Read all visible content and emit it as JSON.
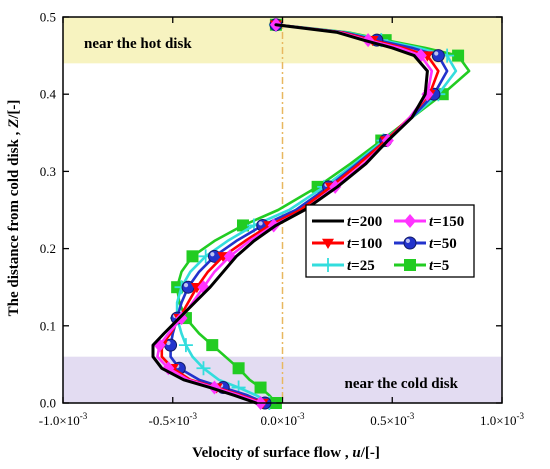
{
  "chart_data": {
    "type": "line",
    "xlabel": {
      "text": "Velocity of surface flow , ",
      "var": "u",
      "unit": "/[-]"
    },
    "ylabel": {
      "text": "The distance from cold disk , ",
      "var": "Z",
      "unit": "/[-]"
    },
    "xlim": [
      -0.001,
      0.001
    ],
    "ylim": [
      0.0,
      0.5
    ],
    "xticks": [
      {
        "value": -0.001,
        "mant": "-1.0",
        "exp": "-3"
      },
      {
        "value": -0.0005,
        "mant": "-0.5",
        "exp": "-3"
      },
      {
        "value": 0.0,
        "mant": "0.0",
        "exp": "-3"
      },
      {
        "value": 0.0005,
        "mant": "0.5",
        "exp": "-3"
      },
      {
        "value": 0.001,
        "mant": "1.0",
        "exp": "-3"
      }
    ],
    "yticks": [
      {
        "value": 0.0,
        "label": "0.0"
      },
      {
        "value": 0.1,
        "label": "0.1"
      },
      {
        "value": 0.2,
        "label": "0.2"
      },
      {
        "value": 0.3,
        "label": "0.3"
      },
      {
        "value": 0.4,
        "label": "0.4"
      },
      {
        "value": 0.5,
        "label": "0.5"
      }
    ],
    "bands": [
      {
        "label": "near the hot disk",
        "y0": 0.44,
        "y1": 0.5,
        "color": "#f7f3c0"
      },
      {
        "label": "near the cold disk",
        "y0": 0.0,
        "y1": 0.06,
        "color": "#e3dcf2"
      }
    ],
    "reference_line": {
      "x": 0.0,
      "color": "#e8b860"
    },
    "legend_placement": "right",
    "series": [
      {
        "name": "t=200",
        "legend_var": "t",
        "legend_val": "=200",
        "color": "#000000",
        "marker": "none",
        "x": [
          -0.00012,
          -0.00022,
          -0.00033,
          -0.00045,
          -0.00055,
          -0.00059,
          -0.00059,
          -0.00054,
          -0.00047,
          -0.0004,
          -0.00033,
          -0.00027,
          -0.00021,
          -0.00013,
          -3e-05,
          0.0001,
          0.00025,
          0.00038,
          0.00048,
          0.00059,
          0.00065,
          0.00066,
          0.0006,
          0.0005,
          0.00037,
          0.00025,
          -3e-05
        ],
        "y": [
          0.0,
          0.01,
          0.02,
          0.03,
          0.045,
          0.06,
          0.075,
          0.09,
          0.11,
          0.13,
          0.15,
          0.17,
          0.19,
          0.21,
          0.23,
          0.25,
          0.28,
          0.31,
          0.34,
          0.37,
          0.4,
          0.43,
          0.45,
          0.46,
          0.47,
          0.48,
          0.49
        ]
      },
      {
        "name": "t=150",
        "legend_var": "t",
        "legend_val": "=150",
        "color": "#ff33ff",
        "marker": "diamond",
        "x": [
          -0.0001,
          -0.0002,
          -0.00031,
          -0.00043,
          -0.00052,
          -0.00057,
          -0.00056,
          -0.00052,
          -0.00046,
          -0.00041,
          -0.00036,
          -0.00031,
          -0.00024,
          -0.00015,
          -4e-05,
          0.0001,
          0.00024,
          0.00037,
          0.00048,
          0.00058,
          0.00066,
          0.00068,
          0.00063,
          0.00053,
          0.00039,
          0.00026,
          -3e-05
        ],
        "y": [
          0.0,
          0.01,
          0.02,
          0.03,
          0.045,
          0.06,
          0.075,
          0.09,
          0.11,
          0.13,
          0.15,
          0.17,
          0.19,
          0.21,
          0.23,
          0.25,
          0.28,
          0.31,
          0.34,
          0.37,
          0.4,
          0.43,
          0.45,
          0.46,
          0.47,
          0.48,
          0.49
        ]
      },
      {
        "name": "t=100",
        "legend_var": "t",
        "legend_val": "=100",
        "color": "#ff0000",
        "marker": "triangle-down",
        "x": [
          -9e-05,
          -0.00019,
          -0.0003,
          -0.00042,
          -0.0005,
          -0.00055,
          -0.00055,
          -0.00051,
          -0.00047,
          -0.00043,
          -0.00039,
          -0.00034,
          -0.00027,
          -0.00017,
          -6e-05,
          8e-05,
          0.00022,
          0.00035,
          0.00047,
          0.00058,
          0.00067,
          0.00071,
          0.00066,
          0.00055,
          0.00041,
          0.00027,
          -3e-05
        ],
        "y": [
          0.0,
          0.01,
          0.02,
          0.03,
          0.045,
          0.06,
          0.075,
          0.09,
          0.11,
          0.13,
          0.15,
          0.17,
          0.19,
          0.21,
          0.23,
          0.25,
          0.28,
          0.31,
          0.34,
          0.37,
          0.4,
          0.43,
          0.45,
          0.46,
          0.47,
          0.48,
          0.49
        ]
      },
      {
        "name": "t=50",
        "legend_var": "t",
        "legend_val": "=50",
        "color": "#2233cc",
        "marker": "circle",
        "x": [
          -8e-05,
          -0.00016,
          -0.00027,
          -0.00038,
          -0.00047,
          -0.00051,
          -0.00051,
          -0.0005,
          -0.00048,
          -0.00046,
          -0.00043,
          -0.00038,
          -0.00031,
          -0.00021,
          -9e-05,
          6e-05,
          0.00021,
          0.00034,
          0.00047,
          0.00059,
          0.00069,
          0.00075,
          0.00071,
          0.00059,
          0.00043,
          0.00028,
          -3e-05
        ],
        "y": [
          0.0,
          0.01,
          0.02,
          0.03,
          0.045,
          0.06,
          0.075,
          0.09,
          0.11,
          0.13,
          0.15,
          0.17,
          0.19,
          0.21,
          0.23,
          0.25,
          0.28,
          0.31,
          0.34,
          0.37,
          0.4,
          0.43,
          0.45,
          0.46,
          0.47,
          0.48,
          0.49
        ]
      },
      {
        "name": "t=25",
        "legend_var": "t",
        "legend_val": "=25",
        "color": "#33dddd",
        "marker": "plus",
        "x": [
          -6e-05,
          -0.00012,
          -0.0002,
          -0.00029,
          -0.00036,
          -0.00041,
          -0.00044,
          -0.00046,
          -0.00048,
          -0.00048,
          -0.00046,
          -0.00042,
          -0.00035,
          -0.00025,
          -0.00013,
          3e-05,
          0.00019,
          0.00033,
          0.00046,
          0.00059,
          0.00071,
          0.00079,
          0.00075,
          0.00062,
          0.00045,
          0.00029,
          -3e-05
        ],
        "y": [
          0.0,
          0.01,
          0.02,
          0.03,
          0.045,
          0.06,
          0.075,
          0.09,
          0.11,
          0.13,
          0.15,
          0.17,
          0.19,
          0.21,
          0.23,
          0.25,
          0.28,
          0.31,
          0.34,
          0.37,
          0.4,
          0.43,
          0.45,
          0.46,
          0.47,
          0.48,
          0.49
        ]
      },
      {
        "name": "t=5",
        "legend_var": "t",
        "legend_val": "=5",
        "color": "#22cc22",
        "marker": "square",
        "x": [
          -3e-05,
          -6e-05,
          -0.0001,
          -0.00015,
          -0.0002,
          -0.00026,
          -0.00032,
          -0.00038,
          -0.00044,
          -0.00047,
          -0.00048,
          -0.00046,
          -0.00041,
          -0.00031,
          -0.00018,
          -2e-05,
          0.00016,
          0.00031,
          0.00045,
          0.00059,
          0.00073,
          0.00085,
          0.0008,
          0.00065,
          0.00047,
          0.0003,
          -3e-05
        ],
        "y": [
          0.0,
          0.01,
          0.02,
          0.03,
          0.045,
          0.06,
          0.075,
          0.09,
          0.11,
          0.13,
          0.15,
          0.17,
          0.19,
          0.21,
          0.23,
          0.25,
          0.28,
          0.31,
          0.34,
          0.37,
          0.4,
          0.43,
          0.45,
          0.46,
          0.47,
          0.48,
          0.49
        ]
      }
    ]
  }
}
